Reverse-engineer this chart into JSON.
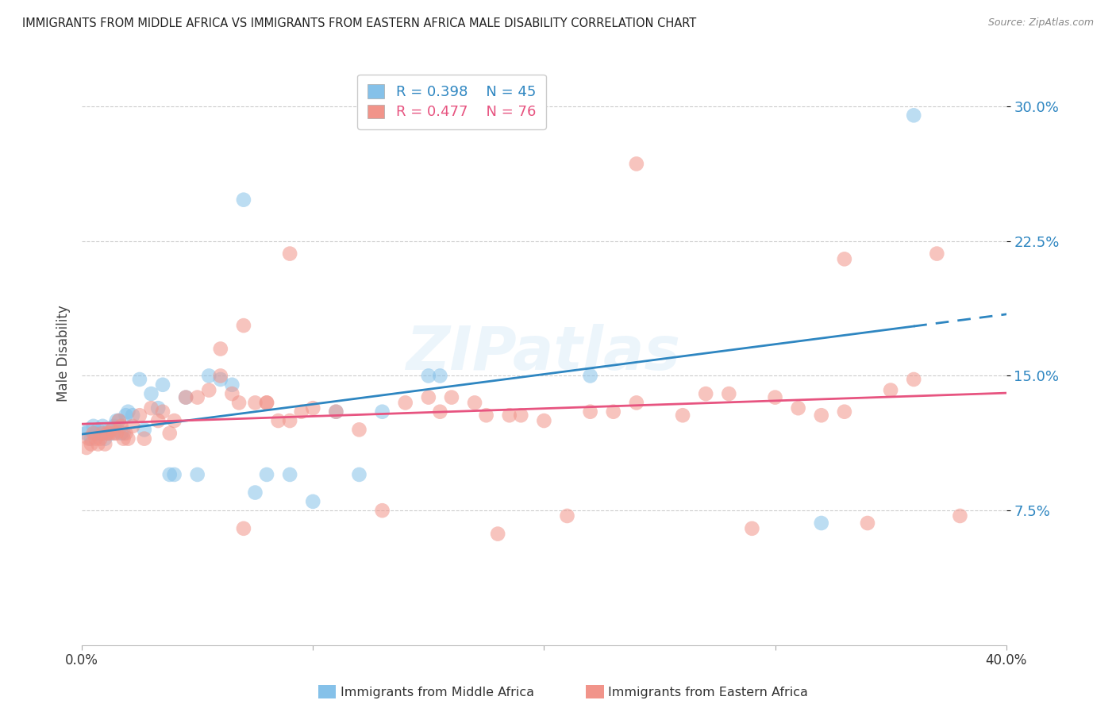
{
  "title": "IMMIGRANTS FROM MIDDLE AFRICA VS IMMIGRANTS FROM EASTERN AFRICA MALE DISABILITY CORRELATION CHART",
  "source": "Source: ZipAtlas.com",
  "ylabel": "Male Disability",
  "yticks": [
    0.075,
    0.15,
    0.225,
    0.3
  ],
  "ytick_labels": [
    "7.5%",
    "15.0%",
    "22.5%",
    "30.0%"
  ],
  "xlim": [
    0.0,
    0.4
  ],
  "ylim": [
    0.0,
    0.325
  ],
  "legend_r1": "R = 0.398",
  "legend_n1": "N = 45",
  "legend_r2": "R = 0.477",
  "legend_n2": "N = 76",
  "label1": "Immigrants from Middle Africa",
  "label2": "Immigrants from Eastern Africa",
  "color1": "#85C1E9",
  "color2": "#F1948A",
  "trendline1_color": "#2E86C1",
  "trendline2_color": "#E75480",
  "watermark": "ZIPatlas",
  "scatter1_x": [
    0.002,
    0.003,
    0.004,
    0.005,
    0.006,
    0.007,
    0.008,
    0.009,
    0.01,
    0.011,
    0.012,
    0.013,
    0.014,
    0.015,
    0.016,
    0.017,
    0.018,
    0.019,
    0.02,
    0.022,
    0.025,
    0.027,
    0.03,
    0.033,
    0.035,
    0.038,
    0.04,
    0.045,
    0.05,
    0.055,
    0.06,
    0.065,
    0.07,
    0.075,
    0.08,
    0.09,
    0.1,
    0.11,
    0.12,
    0.13,
    0.15,
    0.155,
    0.22,
    0.32,
    0.36
  ],
  "scatter1_y": [
    0.118,
    0.12,
    0.115,
    0.122,
    0.118,
    0.12,
    0.118,
    0.122,
    0.115,
    0.118,
    0.12,
    0.118,
    0.122,
    0.125,
    0.125,
    0.118,
    0.118,
    0.128,
    0.13,
    0.128,
    0.148,
    0.12,
    0.14,
    0.132,
    0.145,
    0.095,
    0.095,
    0.138,
    0.095,
    0.15,
    0.148,
    0.145,
    0.248,
    0.085,
    0.095,
    0.095,
    0.08,
    0.13,
    0.095,
    0.13,
    0.15,
    0.15,
    0.15,
    0.068,
    0.295
  ],
  "scatter2_x": [
    0.002,
    0.003,
    0.004,
    0.005,
    0.006,
    0.007,
    0.008,
    0.009,
    0.01,
    0.011,
    0.012,
    0.013,
    0.014,
    0.015,
    0.016,
    0.017,
    0.018,
    0.019,
    0.02,
    0.022,
    0.025,
    0.027,
    0.03,
    0.033,
    0.035,
    0.038,
    0.04,
    0.045,
    0.05,
    0.055,
    0.06,
    0.065,
    0.068,
    0.07,
    0.075,
    0.08,
    0.085,
    0.09,
    0.095,
    0.1,
    0.11,
    0.12,
    0.13,
    0.14,
    0.15,
    0.155,
    0.16,
    0.17,
    0.175,
    0.18,
    0.185,
    0.19,
    0.2,
    0.21,
    0.22,
    0.23,
    0.24,
    0.26,
    0.28,
    0.29,
    0.3,
    0.31,
    0.32,
    0.33,
    0.34,
    0.35,
    0.36,
    0.37,
    0.38,
    0.24,
    0.06,
    0.07,
    0.08,
    0.09,
    0.27,
    0.33
  ],
  "scatter2_y": [
    0.11,
    0.115,
    0.112,
    0.118,
    0.115,
    0.112,
    0.115,
    0.118,
    0.112,
    0.118,
    0.118,
    0.12,
    0.118,
    0.118,
    0.125,
    0.122,
    0.115,
    0.118,
    0.115,
    0.122,
    0.128,
    0.115,
    0.132,
    0.125,
    0.13,
    0.118,
    0.125,
    0.138,
    0.138,
    0.142,
    0.15,
    0.14,
    0.135,
    0.065,
    0.135,
    0.135,
    0.125,
    0.125,
    0.13,
    0.132,
    0.13,
    0.12,
    0.075,
    0.135,
    0.138,
    0.13,
    0.138,
    0.135,
    0.128,
    0.062,
    0.128,
    0.128,
    0.125,
    0.072,
    0.13,
    0.13,
    0.268,
    0.128,
    0.14,
    0.065,
    0.138,
    0.132,
    0.128,
    0.13,
    0.068,
    0.142,
    0.148,
    0.218,
    0.072,
    0.135,
    0.165,
    0.178,
    0.135,
    0.218,
    0.14,
    0.215
  ]
}
